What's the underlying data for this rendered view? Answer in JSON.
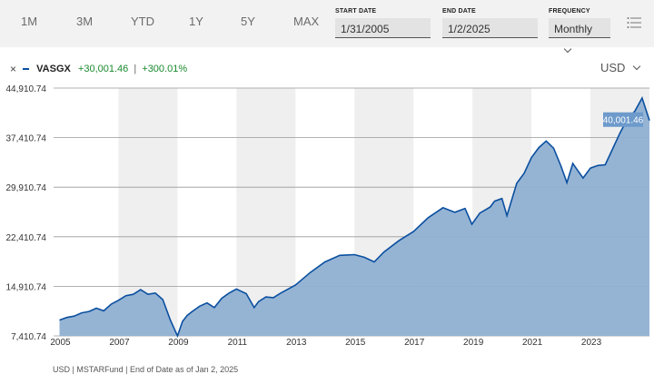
{
  "toolbar": {
    "ranges": [
      "1M",
      "3M",
      "YTD",
      "1Y",
      "5Y",
      "MAX"
    ],
    "start_label": "START DATE",
    "start_value": "1/31/2005",
    "end_label": "END DATE",
    "end_value": "1/2/2025",
    "freq_label": "FREQUENCY",
    "freq_value": "Monthly"
  },
  "legend": {
    "close": "×",
    "ticker": "VASGX",
    "gain": "+30,001.46",
    "separator": "|",
    "gain_pct": "+300.01%"
  },
  "currency": "USD",
  "footer": "USD | MSTARFund | End of Date as of Jan 2, 2025",
  "colors": {
    "line": "#0b4fa0",
    "area": "#8fb0d2",
    "band": "#efefef",
    "badge": "#6d9acb",
    "gain": "#1a8a2e"
  },
  "chart_data": {
    "type": "area",
    "series": [
      {
        "name": "VASGX",
        "x": [
          2005.0,
          2005.25,
          2005.5,
          2005.75,
          2006.0,
          2006.25,
          2006.5,
          2006.75,
          2007.0,
          2007.25,
          2007.5,
          2007.75,
          2008.0,
          2008.25,
          2008.5,
          2008.75,
          2008.9,
          2009.0,
          2009.17,
          2009.33,
          2009.5,
          2009.75,
          2010.0,
          2010.25,
          2010.5,
          2010.75,
          2011.0,
          2011.33,
          2011.6,
          2011.75,
          2012.0,
          2012.25,
          2012.5,
          2012.75,
          2013.0,
          2013.5,
          2014.0,
          2014.5,
          2015.0,
          2015.33,
          2015.67,
          2016.0,
          2016.5,
          2017.0,
          2017.5,
          2018.0,
          2018.4,
          2018.75,
          2018.98,
          2019.25,
          2019.6,
          2019.75,
          2020.0,
          2020.17,
          2020.5,
          2020.75,
          2021.0,
          2021.25,
          2021.5,
          2021.75,
          2022.0,
          2022.2,
          2022.4,
          2022.75,
          2023.0,
          2023.25,
          2023.5,
          2023.75,
          2024.0,
          2024.25,
          2024.5,
          2024.75,
          2025.0
        ],
        "y": [
          9800,
          10200,
          10400,
          10900,
          11100,
          11600,
          11200,
          12200,
          12800,
          13500,
          13700,
          14400,
          13700,
          13900,
          12900,
          9900,
          8400,
          7410,
          9600,
          10500,
          11100,
          11900,
          12400,
          11700,
          13100,
          13900,
          14500,
          13800,
          11700,
          12600,
          13300,
          13200,
          13900,
          14500,
          15100,
          17000,
          18600,
          19600,
          19700,
          19300,
          18600,
          20100,
          21800,
          23200,
          25300,
          26800,
          26100,
          26700,
          24300,
          26000,
          26900,
          27800,
          28200,
          25600,
          30500,
          32000,
          34400,
          35900,
          36900,
          35800,
          33100,
          30600,
          33500,
          31300,
          32800,
          33200,
          33300,
          35700,
          38100,
          40200,
          41400,
          43400,
          40001.46
        ]
      }
    ],
    "xticks": [
      "2005",
      "2007",
      "2009",
      "2011",
      "2013",
      "2015",
      "2017",
      "2019",
      "2021",
      "2023"
    ],
    "yticks": [
      "7,410.74",
      "14,910.74",
      "22,410.74",
      "29,910.74",
      "37,410.74",
      "44,910.74"
    ],
    "ylim": [
      7410.74,
      44910.74
    ],
    "xlim": [
      2004.8,
      2025.0
    ],
    "last_value_label": "40,001.46"
  }
}
